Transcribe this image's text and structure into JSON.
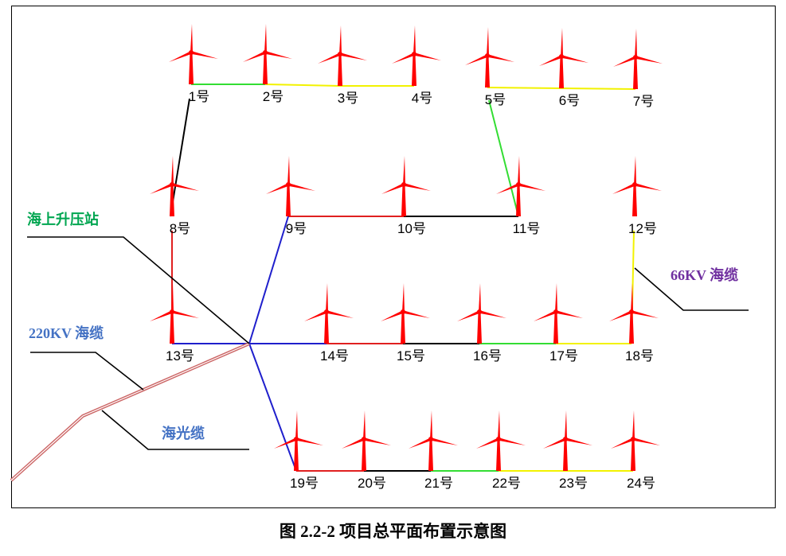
{
  "turbines": [
    {
      "id": "t1",
      "label": "1号"
    },
    {
      "id": "t2",
      "label": "2号"
    },
    {
      "id": "t3",
      "label": "3号"
    },
    {
      "id": "t4",
      "label": "4号"
    },
    {
      "id": "t5",
      "label": "5号"
    },
    {
      "id": "t6",
      "label": "6号"
    },
    {
      "id": "t7",
      "label": "7号"
    },
    {
      "id": "t8",
      "label": "8号"
    },
    {
      "id": "t9",
      "label": "9号"
    },
    {
      "id": "t10",
      "label": "10号"
    },
    {
      "id": "t11",
      "label": "11号"
    },
    {
      "id": "t12",
      "label": "12号"
    },
    {
      "id": "t13",
      "label": "13号"
    },
    {
      "id": "t14",
      "label": "14号"
    },
    {
      "id": "t15",
      "label": "15号"
    },
    {
      "id": "t16",
      "label": "16号"
    },
    {
      "id": "t17",
      "label": "17号"
    },
    {
      "id": "t18",
      "label": "18号"
    },
    {
      "id": "t19",
      "label": "19号"
    },
    {
      "id": "t20",
      "label": "20号"
    },
    {
      "id": "t21",
      "label": "21号"
    },
    {
      "id": "t22",
      "label": "22号"
    },
    {
      "id": "t23",
      "label": "23号"
    },
    {
      "id": "t24",
      "label": "24号"
    }
  ],
  "callouts": {
    "substation": {
      "text": "海上升压站",
      "color": "#00a651"
    },
    "cable_66kv": {
      "text": "66KV 海缆",
      "color": "#7030a0"
    },
    "cable_220kv": {
      "text": "220KV 海缆",
      "color": "#4472c4"
    },
    "optical_cable": {
      "text": "海光缆",
      "color": "#4472c4"
    }
  },
  "colors": {
    "turbine": "#ff0000",
    "cable_black": "#000000",
    "cable_green": "#33dd33",
    "cable_yellow": "#f2f200",
    "cable_red": "#e02020",
    "cable_blue": "#1f1fcc",
    "cable_export": "#cc6666"
  },
  "caption": "图 2.2-2  项目总平面布置示意图"
}
